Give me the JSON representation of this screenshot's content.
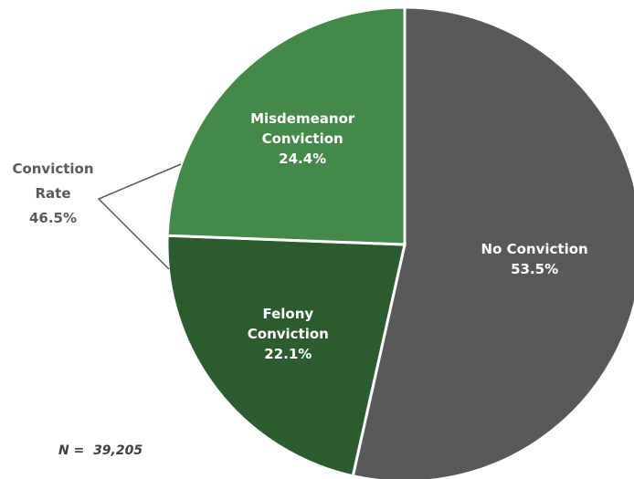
{
  "chart_data": {
    "type": "pie",
    "categories": [
      "No Conviction",
      "Felony Conviction",
      "Misdemeanor Conviction"
    ],
    "values": [
      53.5,
      22.1,
      24.4
    ],
    "value_labels": [
      "53.5%",
      "22.1%",
      "24.4%"
    ],
    "colors": [
      "#595959",
      "#2c5b2f",
      "#44884a"
    ],
    "annotation": "Conviction Rate",
    "annotation_value": "46.5%",
    "note": "N =  39,205"
  }
}
